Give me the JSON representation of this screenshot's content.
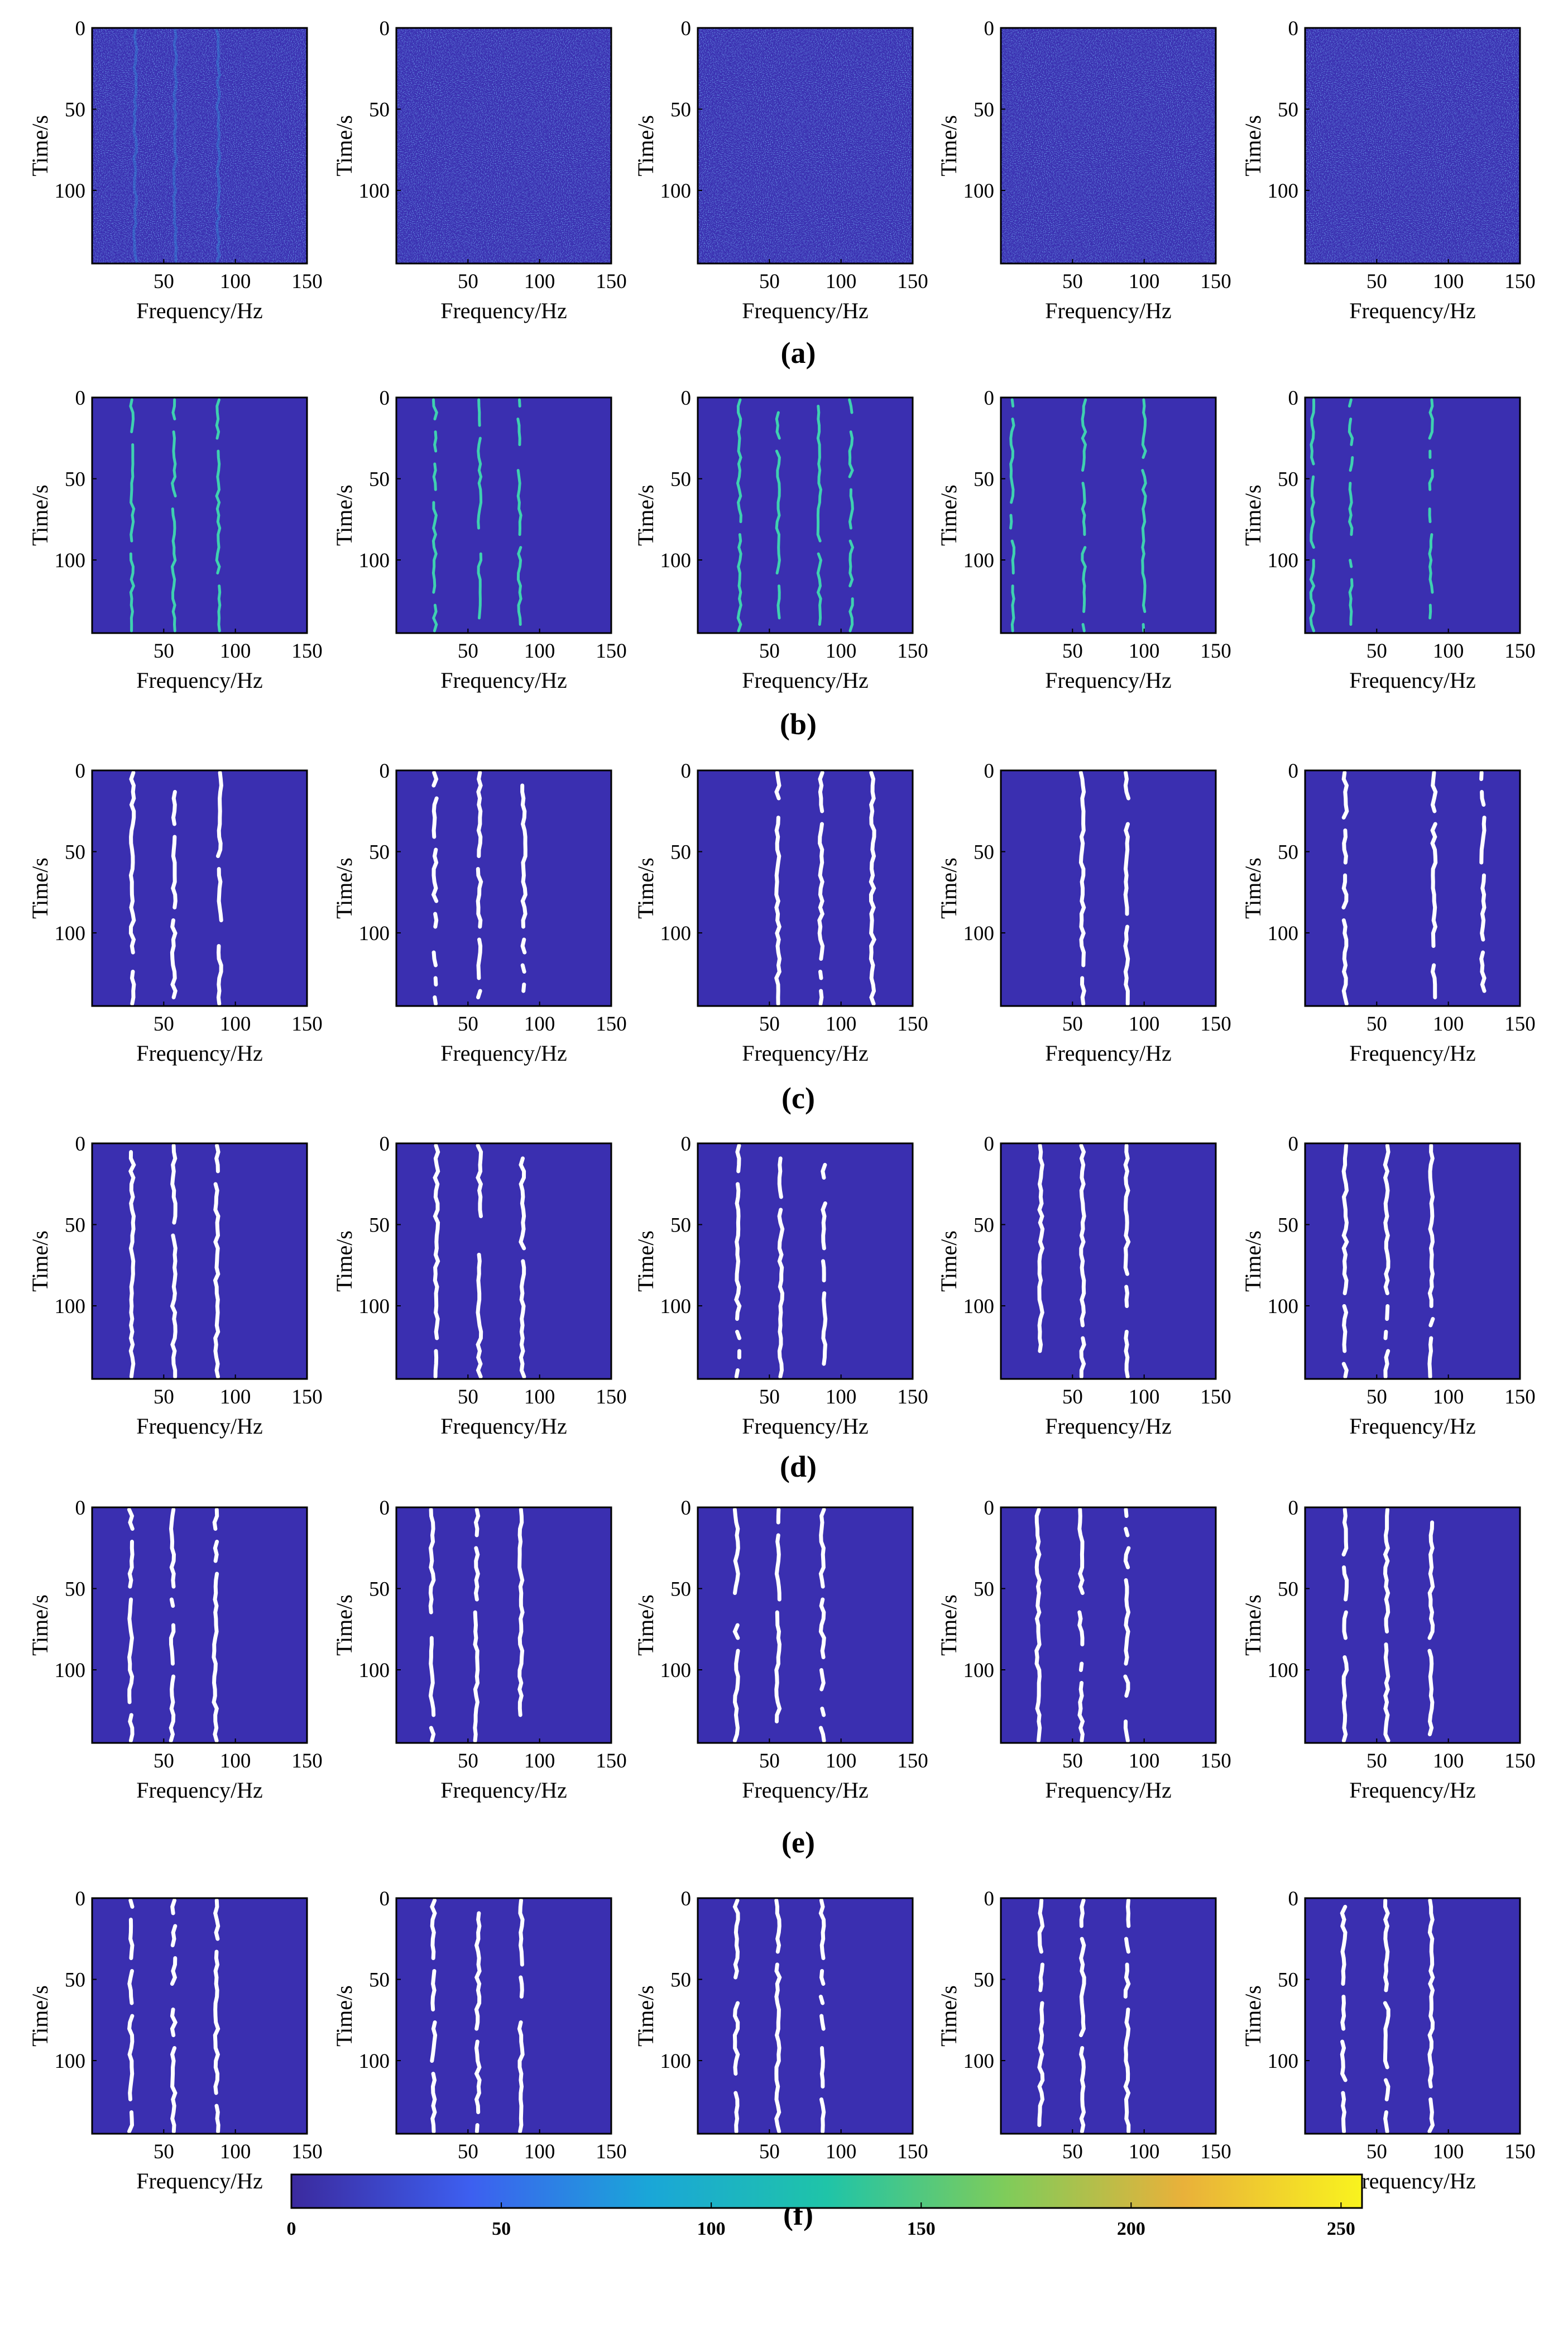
{
  "figure": {
    "axis": {
      "xlabel": "Frequency/Hz",
      "ylabel": "Time/s",
      "xticks": [
        50,
        100,
        150
      ],
      "yticks": [
        0,
        50,
        100
      ],
      "xlim": [
        0,
        150
      ],
      "ylim": [
        0,
        145
      ]
    },
    "colors": {
      "background_field": "#3a2fb0",
      "noise_bright": "#2f9ee0",
      "trace_teal": "#3fd0b0",
      "trace_white": "#ffffff",
      "frame": "#000000"
    },
    "rows": [
      {
        "label": "(a)",
        "kind": "noise",
        "panels": [
          {
            "lines": [
              30,
              58,
              88
            ]
          },
          {
            "lines": []
          },
          {
            "lines": []
          },
          {
            "lines": []
          },
          {
            "lines": []
          }
        ]
      },
      {
        "label": "(b)",
        "kind": "teal",
        "panels": [
          {
            "lines": [
              28,
              57,
              88
            ]
          },
          {
            "lines": [
              27,
              58,
              86
            ]
          },
          {
            "lines": [
              29,
              56,
              85,
              107
            ]
          },
          {
            "lines": [
              8,
              58,
              100
            ]
          },
          {
            "lines": [
              5,
              32,
              88
            ]
          }
        ]
      },
      {
        "label": "(c)",
        "kind": "white",
        "panels": [
          {
            "lines": [
              28,
              57,
              89
            ]
          },
          {
            "lines": [
              27,
              58,
              89
            ]
          },
          {
            "lines": [
              56,
              86,
              122
            ]
          },
          {
            "lines": [
              57,
              88
            ]
          },
          {
            "lines": [
              28,
              90,
              124
            ]
          }
        ]
      },
      {
        "label": "(d)",
        "kind": "white",
        "panels": [
          {
            "lines": [
              28,
              57,
              87
            ]
          },
          {
            "lines": [
              28,
              58,
              88
            ]
          },
          {
            "lines": [
              28,
              58,
              88
            ]
          },
          {
            "lines": [
              28,
              57,
              88
            ]
          },
          {
            "lines": [
              28,
              57,
              88
            ]
          }
        ]
      },
      {
        "label": "(e)",
        "kind": "white",
        "panels": [
          {
            "lines": [
              27,
              56,
              86
            ]
          },
          {
            "lines": [
              25,
              56,
              87
            ]
          },
          {
            "lines": [
              27,
              56,
              87
            ]
          },
          {
            "lines": [
              26,
              56,
              88
            ]
          },
          {
            "lines": [
              28,
              57,
              88
            ]
          }
        ]
      },
      {
        "label": "(f)",
        "kind": "white",
        "panels": [
          {
            "lines": [
              27,
              57,
              87
            ]
          },
          {
            "lines": [
              26,
              57,
              87
            ]
          },
          {
            "lines": [
              27,
              56,
              87
            ]
          },
          {
            "lines": [
              28,
              57,
              88
            ]
          },
          {
            "lines": [
              27,
              57,
              88
            ]
          }
        ]
      }
    ],
    "colorbar": {
      "ticks": [
        0,
        50,
        100,
        150,
        200,
        250
      ],
      "range": [
        0,
        255
      ],
      "stops": [
        "#3b2a9e",
        "#3d5ff0",
        "#1aa6d8",
        "#1fc4a8",
        "#7fcc5a",
        "#e9b13a",
        "#f9f31e"
      ]
    }
  }
}
